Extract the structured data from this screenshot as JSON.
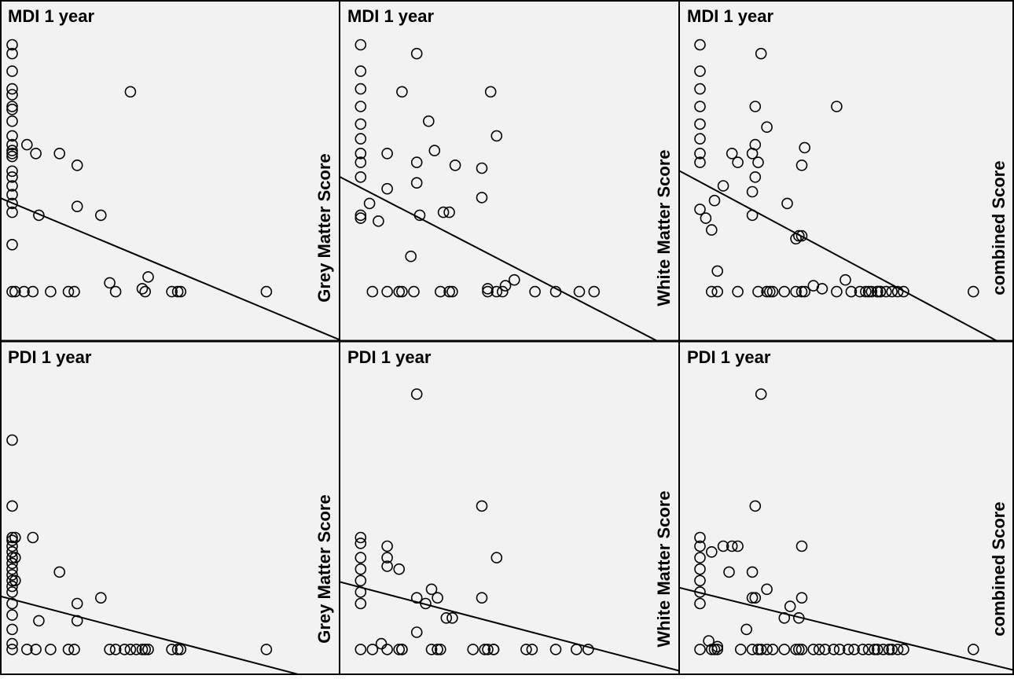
{
  "chart_data": [
    {
      "type": "scatter",
      "title": "MDI 1 year",
      "xlabel": "Grey Matter Score",
      "ylabel": "",
      "xlim": [
        0,
        100
      ],
      "ylim": [
        0,
        100
      ],
      "grid": false,
      "regression": {
        "intercept": 43,
        "slope": -0.42
      },
      "points": [
        [
          2,
          96
        ],
        [
          2,
          93
        ],
        [
          2,
          87
        ],
        [
          2,
          81
        ],
        [
          2,
          79
        ],
        [
          2,
          75
        ],
        [
          2,
          74
        ],
        [
          2,
          70
        ],
        [
          2,
          65
        ],
        [
          2,
          62
        ],
        [
          2,
          60
        ],
        [
          2,
          59
        ],
        [
          2,
          58
        ],
        [
          2,
          53
        ],
        [
          2,
          51
        ],
        [
          2,
          48
        ],
        [
          2,
          45
        ],
        [
          2,
          42
        ],
        [
          2,
          39
        ],
        [
          2,
          28
        ],
        [
          2,
          12
        ],
        [
          3,
          12
        ],
        [
          7,
          62
        ],
        [
          10,
          59
        ],
        [
          6,
          12
        ],
        [
          9,
          12
        ],
        [
          15,
          12
        ],
        [
          11,
          38
        ],
        [
          18,
          59
        ],
        [
          21,
          12
        ],
        [
          23,
          12
        ],
        [
          24,
          55
        ],
        [
          24,
          41
        ],
        [
          32,
          38
        ],
        [
          35,
          15
        ],
        [
          37,
          12
        ],
        [
          42,
          80
        ],
        [
          46,
          13
        ],
        [
          47,
          12
        ],
        [
          48,
          17
        ],
        [
          56,
          12
        ],
        [
          58,
          12
        ],
        [
          59,
          12
        ],
        [
          88,
          12
        ]
      ]
    },
    {
      "type": "scatter",
      "title": "MDI 1 year",
      "xlabel": "White Matter Score",
      "ylabel": "",
      "xlim": [
        0,
        100
      ],
      "ylim": [
        0,
        100
      ],
      "grid": false,
      "regression": {
        "intercept": 50,
        "slope": -0.52
      },
      "points": [
        [
          5,
          96
        ],
        [
          5,
          87
        ],
        [
          5,
          81
        ],
        [
          5,
          75
        ],
        [
          5,
          69
        ],
        [
          5,
          64
        ],
        [
          5,
          59
        ],
        [
          5,
          56
        ],
        [
          5,
          51
        ],
        [
          5,
          38
        ],
        [
          5,
          37
        ],
        [
          9,
          12
        ],
        [
          14,
          12
        ],
        [
          18,
          12
        ],
        [
          8,
          42
        ],
        [
          11,
          36
        ],
        [
          14,
          59
        ],
        [
          14,
          47
        ],
        [
          19,
          80
        ],
        [
          19,
          12
        ],
        [
          22,
          24
        ],
        [
          23,
          12
        ],
        [
          24,
          93
        ],
        [
          24,
          56
        ],
        [
          24,
          49
        ],
        [
          25,
          38
        ],
        [
          28,
          70
        ],
        [
          30,
          60
        ],
        [
          32,
          12
        ],
        [
          33,
          39
        ],
        [
          35,
          12
        ],
        [
          35,
          39
        ],
        [
          36,
          12
        ],
        [
          37,
          55
        ],
        [
          48,
          12
        ],
        [
          48,
          13
        ],
        [
          46,
          54
        ],
        [
          46,
          44
        ],
        [
          49,
          80
        ],
        [
          51,
          65
        ],
        [
          51,
          12
        ],
        [
          53,
          12
        ],
        [
          54,
          14
        ],
        [
          57,
          16
        ],
        [
          64,
          12
        ],
        [
          71,
          12
        ],
        [
          79,
          12
        ],
        [
          84,
          12
        ]
      ]
    },
    {
      "type": "scatter",
      "title": "MDI 1 year",
      "xlabel": "combined Score",
      "ylabel": "",
      "xlim": [
        0,
        100
      ],
      "ylim": [
        0,
        100
      ],
      "grid": false,
      "regression": {
        "intercept": 52,
        "slope": -0.53
      },
      "points": [
        [
          5,
          96
        ],
        [
          5,
          87
        ],
        [
          5,
          81
        ],
        [
          5,
          75
        ],
        [
          5,
          69
        ],
        [
          5,
          64
        ],
        [
          5,
          59
        ],
        [
          5,
          56
        ],
        [
          5,
          40
        ],
        [
          7,
          37
        ],
        [
          9,
          33
        ],
        [
          10,
          43
        ],
        [
          11,
          19
        ],
        [
          9,
          12
        ],
        [
          11,
          12
        ],
        [
          18,
          12
        ],
        [
          13,
          48
        ],
        [
          16,
          59
        ],
        [
          18,
          56
        ],
        [
          23,
          59
        ],
        [
          23,
          46
        ],
        [
          24,
          62
        ],
        [
          24,
          51
        ],
        [
          23,
          38
        ],
        [
          24,
          75
        ],
        [
          25,
          56
        ],
        [
          25,
          12
        ],
        [
          26,
          93
        ],
        [
          28,
          12
        ],
        [
          28,
          68
        ],
        [
          29,
          12
        ],
        [
          30,
          12
        ],
        [
          34,
          12
        ],
        [
          35,
          42
        ],
        [
          38,
          12
        ],
        [
          38,
          30
        ],
        [
          39,
          31
        ],
        [
          40,
          12
        ],
        [
          40,
          31
        ],
        [
          41,
          61
        ],
        [
          40,
          55
        ],
        [
          41,
          12
        ],
        [
          44,
          14
        ],
        [
          47,
          13
        ],
        [
          52,
          12
        ],
        [
          52,
          75
        ],
        [
          55,
          16
        ],
        [
          57,
          12
        ],
        [
          60,
          12
        ],
        [
          62,
          12
        ],
        [
          63,
          12
        ],
        [
          64,
          12
        ],
        [
          66,
          12
        ],
        [
          66,
          12
        ],
        [
          67,
          12
        ],
        [
          67,
          12
        ],
        [
          69,
          12
        ],
        [
          71,
          12
        ],
        [
          73,
          12
        ],
        [
          75,
          12
        ],
        [
          99,
          12
        ]
      ]
    },
    {
      "type": "scatter",
      "title": "PDI 1 year",
      "xlabel": "Grey Matter Score",
      "ylabel": "",
      "xlim": [
        0,
        100
      ],
      "ylim": [
        0,
        100
      ],
      "grid": false,
      "regression": {
        "intercept": 22,
        "slope": -0.27
      },
      "points": [
        [
          2,
          77
        ],
        [
          2,
          54
        ],
        [
          2,
          43
        ],
        [
          2,
          42
        ],
        [
          2,
          40
        ],
        [
          2,
          38
        ],
        [
          2,
          36
        ],
        [
          2,
          34
        ],
        [
          2,
          32
        ],
        [
          2,
          30
        ],
        [
          2,
          28
        ],
        [
          2,
          26
        ],
        [
          2,
          24
        ],
        [
          2,
          20
        ],
        [
          2,
          16
        ],
        [
          2,
          11
        ],
        [
          2,
          6
        ],
        [
          2,
          4
        ],
        [
          3,
          43
        ],
        [
          3,
          36
        ],
        [
          3,
          28
        ],
        [
          7,
          4
        ],
        [
          9,
          43
        ],
        [
          10,
          4
        ],
        [
          11,
          14
        ],
        [
          15,
          4
        ],
        [
          18,
          31
        ],
        [
          21,
          4
        ],
        [
          23,
          4
        ],
        [
          24,
          20
        ],
        [
          24,
          14
        ],
        [
          32,
          22
        ],
        [
          35,
          4
        ],
        [
          37,
          4
        ],
        [
          40,
          4
        ],
        [
          42,
          4
        ],
        [
          44,
          4
        ],
        [
          46,
          4
        ],
        [
          47,
          4
        ],
        [
          48,
          4
        ],
        [
          56,
          4
        ],
        [
          58,
          4
        ],
        [
          59,
          4
        ],
        [
          88,
          4
        ]
      ]
    },
    {
      "type": "scatter",
      "title": "PDI 1 year",
      "xlabel": "White Matter Score",
      "ylabel": "",
      "xlim": [
        0,
        100
      ],
      "ylim": [
        0,
        100
      ],
      "grid": false,
      "regression": {
        "intercept": 27,
        "slope": -0.27
      },
      "points": [
        [
          5,
          43
        ],
        [
          5,
          41
        ],
        [
          5,
          36
        ],
        [
          5,
          32
        ],
        [
          5,
          28
        ],
        [
          5,
          24
        ],
        [
          5,
          20
        ],
        [
          5,
          4
        ],
        [
          9,
          4
        ],
        [
          12,
          6
        ],
        [
          14,
          4
        ],
        [
          14,
          40
        ],
        [
          14,
          36
        ],
        [
          14,
          33
        ],
        [
          18,
          32
        ],
        [
          18,
          4
        ],
        [
          19,
          4
        ],
        [
          19,
          4
        ],
        [
          24,
          93
        ],
        [
          24,
          22
        ],
        [
          24,
          10
        ],
        [
          27,
          20
        ],
        [
          29,
          25
        ],
        [
          31,
          22
        ],
        [
          29,
          4
        ],
        [
          31,
          4
        ],
        [
          32,
          4
        ],
        [
          34,
          15
        ],
        [
          36,
          15
        ],
        [
          43,
          4
        ],
        [
          46,
          54
        ],
        [
          46,
          22
        ],
        [
          47,
          4
        ],
        [
          48,
          4
        ],
        [
          50,
          4
        ],
        [
          51,
          36
        ],
        [
          50,
          4
        ],
        [
          61,
          4
        ],
        [
          63,
          4
        ],
        [
          71,
          4
        ],
        [
          78,
          4
        ],
        [
          82,
          4
        ]
      ]
    },
    {
      "type": "scatter",
      "title": "PDI 1 year",
      "xlabel": "combined Score",
      "ylabel": "",
      "xlim": [
        0,
        100
      ],
      "ylim": [
        0,
        100
      ],
      "grid": false,
      "regression": {
        "intercept": 25,
        "slope": -0.25
      },
      "points": [
        [
          5,
          43
        ],
        [
          5,
          40
        ],
        [
          5,
          36
        ],
        [
          5,
          32
        ],
        [
          5,
          28
        ],
        [
          5,
          24
        ],
        [
          5,
          20
        ],
        [
          5,
          4
        ],
        [
          8,
          7
        ],
        [
          9,
          4
        ],
        [
          10,
          4
        ],
        [
          11,
          5
        ],
        [
          11,
          4
        ],
        [
          9,
          38
        ],
        [
          13,
          40
        ],
        [
          15,
          31
        ],
        [
          18,
          40
        ],
        [
          16,
          40
        ],
        [
          19,
          4
        ],
        [
          21,
          11
        ],
        [
          23,
          31
        ],
        [
          23,
          22
        ],
        [
          23,
          4
        ],
        [
          24,
          54
        ],
        [
          24,
          22
        ],
        [
          25,
          4
        ],
        [
          26,
          93
        ],
        [
          26,
          4
        ],
        [
          28,
          25
        ],
        [
          28,
          4
        ],
        [
          30,
          4
        ],
        [
          34,
          4
        ],
        [
          34,
          15
        ],
        [
          36,
          19
        ],
        [
          38,
          4
        ],
        [
          39,
          4
        ],
        [
          39,
          15
        ],
        [
          40,
          22
        ],
        [
          40,
          4
        ],
        [
          40,
          40
        ],
        [
          44,
          4
        ],
        [
          46,
          4
        ],
        [
          48,
          4
        ],
        [
          51,
          4
        ],
        [
          53,
          4
        ],
        [
          56,
          4
        ],
        [
          58,
          4
        ],
        [
          61,
          4
        ],
        [
          63,
          4
        ],
        [
          65,
          4
        ],
        [
          66,
          4
        ],
        [
          68,
          4
        ],
        [
          70,
          4
        ],
        [
          71,
          4
        ],
        [
          73,
          4
        ],
        [
          75,
          4
        ],
        [
          99,
          4
        ]
      ]
    }
  ]
}
